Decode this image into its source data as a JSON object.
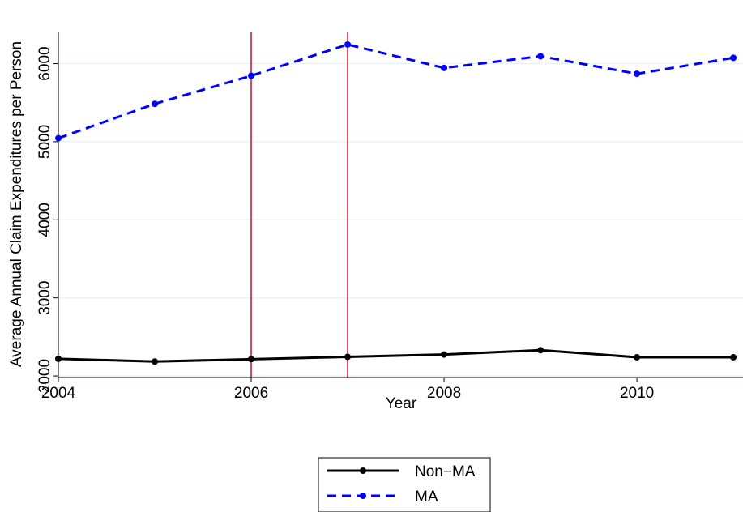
{
  "chart_data": {
    "type": "line",
    "x": [
      2004,
      2005,
      2006,
      2007,
      2008,
      2009,
      2010,
      2011
    ],
    "series": [
      {
        "name": "Non−MA",
        "values": [
          2220,
          2185,
          2215,
          2245,
          2275,
          2330,
          2240,
          2240
        ],
        "color": "#000000",
        "style": "solid"
      },
      {
        "name": "MA",
        "values": [
          5045,
          5485,
          5845,
          6245,
          5945,
          6095,
          5870,
          6075
        ],
        "color": "#0000ff",
        "style": "dashed"
      }
    ],
    "xlabel": "Year",
    "ylabel": "Average Annual Claim Expenditures per Person",
    "xticks": [
      "2004",
      "2006",
      "2008",
      "2010"
    ],
    "yticks": [
      "2000",
      "3000",
      "4000",
      "5000",
      "6000"
    ],
    "xlim": [
      2004,
      2011.1
    ],
    "ylim": [
      1980,
      6400
    ],
    "vlines": [
      2006,
      2007
    ],
    "vline_color": "#c8102e",
    "grid": true,
    "legend_position": "bottom"
  }
}
